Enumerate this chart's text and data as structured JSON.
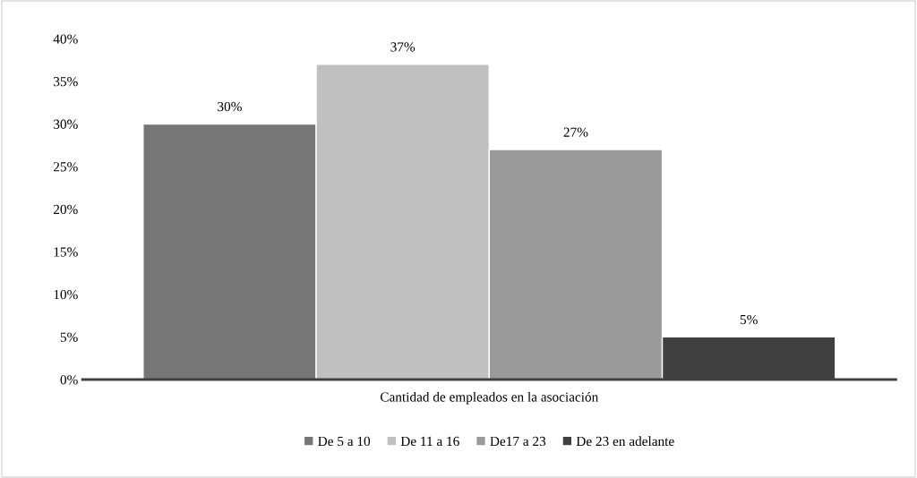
{
  "chart_data": {
    "type": "bar",
    "categories": [
      "Cantidad de empleados en la asociación"
    ],
    "series": [
      {
        "name": "De 5 a 10",
        "color": "#767676",
        "values": [
          30
        ]
      },
      {
        "name": "De 11 a 16",
        "color": "#c0c0c0",
        "values": [
          37
        ]
      },
      {
        "name": "De17 a 23",
        "color": "#9a9a9a",
        "values": [
          27
        ]
      },
      {
        "name": "De 23 en adelante",
        "color": "#404040",
        "values": [
          5
        ]
      }
    ],
    "ylim": [
      0,
      40
    ],
    "yticks": [
      {
        "value": 0,
        "label": "0%"
      },
      {
        "value": 5,
        "label": "5%"
      },
      {
        "value": 10,
        "label": "10%"
      },
      {
        "value": 15,
        "label": "15%"
      },
      {
        "value": 20,
        "label": "20%"
      },
      {
        "value": 25,
        "label": "25%"
      },
      {
        "value": 30,
        "label": "30%"
      },
      {
        "value": 35,
        "label": "35%"
      },
      {
        "value": 40,
        "label": "40%"
      }
    ],
    "value_labels": [
      [
        "30%"
      ],
      [
        "37%"
      ],
      [
        "27%"
      ],
      [
        "5%"
      ]
    ],
    "grid": false,
    "legend": "bottom"
  }
}
